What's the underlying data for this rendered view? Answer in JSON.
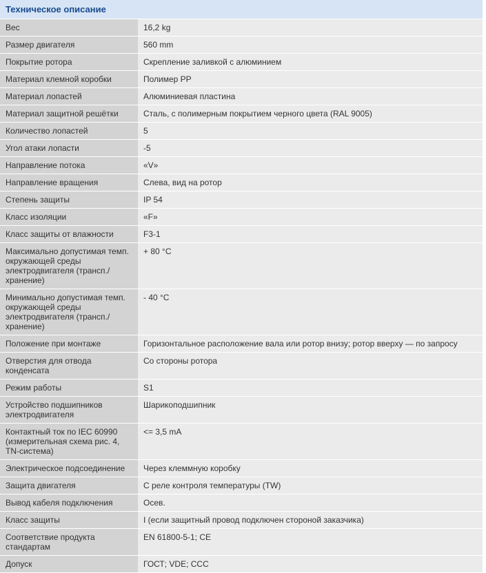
{
  "header": {
    "title": "Техническое описание"
  },
  "table": {
    "columns": [
      "label",
      "value"
    ],
    "label_width": 200,
    "label_bg_color": "#d3d3d3",
    "value_bg_color": "#ebebeb",
    "header_bg_color": "#d6e4f5",
    "header_text_color": "#1a4b8c",
    "text_color": "#333333",
    "font_size": 12,
    "rows": [
      {
        "label": "Вес",
        "value": "16,2 kg"
      },
      {
        "label": "Размер двигателя",
        "value": "560 mm"
      },
      {
        "label": "Покрытие ротора",
        "value": "Скрепление заливкой с алюминием"
      },
      {
        "label": "Материал клемной коробки",
        "value": "Полимер PP"
      },
      {
        "label": "Материал лопастей",
        "value": "Алюминиевая пластина"
      },
      {
        "label": "Материал защитной решётки",
        "value": "Сталь, с полимерным покрытием черного цвета (RAL 9005)"
      },
      {
        "label": "Количество лопастей",
        "value": "5"
      },
      {
        "label": "Угол атаки лопасти",
        "value": "-5"
      },
      {
        "label": "Направление потока",
        "value": "«V»"
      },
      {
        "label": "Направление вращения",
        "value": "Слева, вид на ротор"
      },
      {
        "label": "Степень защиты",
        "value": "IP 54"
      },
      {
        "label": "Класс изоляции",
        "value": "«F»"
      },
      {
        "label": "Класс защиты от влажности",
        "value": "F3-1"
      },
      {
        "label": "Максимально допустимая темп. окружающей среды электродвигателя (трансп./хранение)",
        "value": "+ 80 °C"
      },
      {
        "label": "Минимально допустимая темп. окружающей среды электродвигателя (трансп./хранение)",
        "value": "- 40 °C"
      },
      {
        "label": "Положение при монтаже",
        "value": "Горизонтальное расположение вала или ротор внизу; ротор вверху — по запросу"
      },
      {
        "label": "Отверстия для отвода конденсата",
        "value": "Со стороны ротора"
      },
      {
        "label": "Режим работы",
        "value": "S1"
      },
      {
        "label": "Устройство подшипников электродвигателя",
        "value": "Шарикоподшипник"
      },
      {
        "label": "Контактный ток по IEC 60990 (измерительная схема рис. 4, TN-система)",
        "value": "<= 3,5 mA"
      },
      {
        "label": "Электрическое подсоединение",
        "value": "Через клеммную коробку"
      },
      {
        "label": "Защита двигателя",
        "value": "С реле контроля температуры (TW)"
      },
      {
        "label": "Вывод кабеля подключения",
        "value": "Осев."
      },
      {
        "label": "Класс защиты",
        "value": "I (если защитный провод подключен стороной заказчика)"
      },
      {
        "label": "Соответствие продукта стандартам",
        "value": "EN 61800-5-1; CE"
      },
      {
        "label": "Допуск",
        "value": "ГОСТ; VDE; CCC"
      }
    ]
  }
}
